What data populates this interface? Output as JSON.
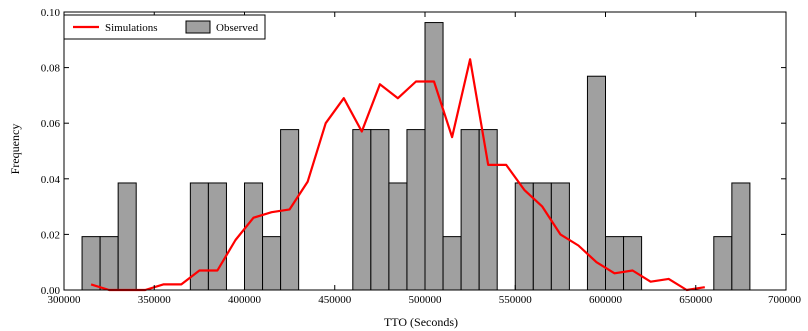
{
  "chart_data": {
    "type": "bar",
    "xlabel": "TTO (Seconds)",
    "ylabel": "Frequency",
    "xlim": [
      300000,
      700000
    ],
    "ylim": [
      0,
      0.1
    ],
    "xticks": [
      300000,
      350000,
      400000,
      450000,
      500000,
      550000,
      600000,
      650000,
      700000
    ],
    "xtick_labels": [
      "300000",
      "350000",
      "400000",
      "450000",
      "500000",
      "550000",
      "600000",
      "650000",
      "700000"
    ],
    "yticks": [
      0,
      0.02,
      0.04,
      0.06,
      0.08,
      0.1
    ],
    "ytick_labels": [
      "0.00",
      "0.02",
      "0.04",
      "0.06",
      "0.08",
      "0.10"
    ],
    "grid": false,
    "legend": {
      "position": "top-left",
      "entries": [
        {
          "label": "Simulations",
          "type": "line",
          "color": "#ff0000"
        },
        {
          "label": "Observed",
          "type": "bar",
          "color": "#a0a0a0"
        }
      ]
    },
    "series": [
      {
        "name": "Observed",
        "type": "histogram",
        "color": "#a0a0a0",
        "bin_width": 10000,
        "bins": [
          {
            "x0": 310000,
            "value": 0.0192
          },
          {
            "x0": 320000,
            "value": 0.0192
          },
          {
            "x0": 330000,
            "value": 0.0385
          },
          {
            "x0": 370000,
            "value": 0.0385
          },
          {
            "x0": 380000,
            "value": 0.0385
          },
          {
            "x0": 400000,
            "value": 0.0385
          },
          {
            "x0": 410000,
            "value": 0.0192
          },
          {
            "x0": 420000,
            "value": 0.0577
          },
          {
            "x0": 460000,
            "value": 0.0577
          },
          {
            "x0": 470000,
            "value": 0.0577
          },
          {
            "x0": 480000,
            "value": 0.0385
          },
          {
            "x0": 490000,
            "value": 0.0577
          },
          {
            "x0": 500000,
            "value": 0.0962
          },
          {
            "x0": 510000,
            "value": 0.0192
          },
          {
            "x0": 520000,
            "value": 0.0577
          },
          {
            "x0": 530000,
            "value": 0.0577
          },
          {
            "x0": 550000,
            "value": 0.0385
          },
          {
            "x0": 560000,
            "value": 0.0385
          },
          {
            "x0": 570000,
            "value": 0.0385
          },
          {
            "x0": 590000,
            "value": 0.0769
          },
          {
            "x0": 600000,
            "value": 0.0192
          },
          {
            "x0": 610000,
            "value": 0.0192
          },
          {
            "x0": 660000,
            "value": 0.0192
          },
          {
            "x0": 670000,
            "value": 0.0385
          }
        ]
      },
      {
        "name": "Simulations",
        "type": "line",
        "color": "#ff0000",
        "x": [
          315000,
          325000,
          335000,
          345000,
          355000,
          365000,
          375000,
          385000,
          395000,
          405000,
          415000,
          425000,
          435000,
          445000,
          455000,
          465000,
          475000,
          485000,
          495000,
          505000,
          515000,
          525000,
          535000,
          545000,
          555000,
          565000,
          575000,
          585000,
          595000,
          605000,
          615000,
          625000,
          635000,
          645000,
          655000
        ],
        "y": [
          0.002,
          0.0,
          0.0,
          0.0,
          0.002,
          0.002,
          0.007,
          0.007,
          0.018,
          0.026,
          0.028,
          0.029,
          0.039,
          0.06,
          0.069,
          0.057,
          0.074,
          0.069,
          0.075,
          0.075,
          0.055,
          0.083,
          0.045,
          0.045,
          0.036,
          0.03,
          0.02,
          0.016,
          0.01,
          0.006,
          0.007,
          0.003,
          0.004,
          0.0,
          0.001
        ]
      }
    ]
  }
}
